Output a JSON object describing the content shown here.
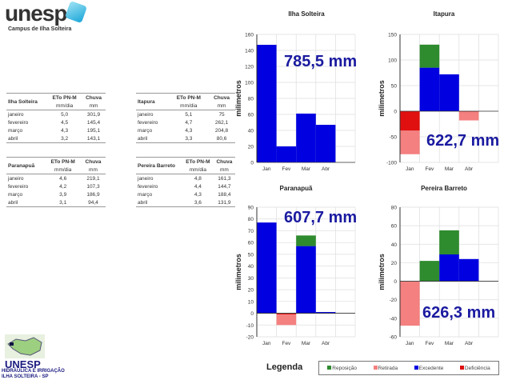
{
  "header": {
    "logo_text": "unesp",
    "campus": "Campus de Ilha Solteira"
  },
  "footer_logo": {
    "text": "UNESP",
    "subtitle": "HIDRÁULICA E IRRIGAÇÃO ILHA SOLTEIRA - SP"
  },
  "tables": [
    {
      "station": "Ilha Solteira",
      "col1": "ETo PN-M",
      "col2": "Chuva",
      "unit1": "mm/dia",
      "unit2": "mm",
      "rows": [
        {
          "month": "janeiro",
          "eto": "5,0",
          "chuva": "301,9"
        },
        {
          "month": "fevereiro",
          "eto": "4,5",
          "chuva": "145,4"
        },
        {
          "month": "março",
          "eto": "4,3",
          "chuva": "195,1"
        },
        {
          "month": "abril",
          "eto": "3,2",
          "chuva": "143,1"
        }
      ]
    },
    {
      "station": "Itapura",
      "col1": "ETo PN-M",
      "col2": "Chuva",
      "unit1": "mm/dia",
      "unit2": "mm",
      "rows": [
        {
          "month": "janeiro",
          "eto": "5,1",
          "chuva": "75"
        },
        {
          "month": "fevereiro",
          "eto": "4,7",
          "chuva": "262,1"
        },
        {
          "month": "março",
          "eto": "4,3",
          "chuva": "204,8"
        },
        {
          "month": "abril",
          "eto": "3,3",
          "chuva": "80,6"
        }
      ]
    },
    {
      "station": "Paranapuã",
      "col1": "ETo PN-M",
      "col2": "Chuva",
      "unit1": "mm/dia",
      "unit2": "mm",
      "rows": [
        {
          "month": "janeiro",
          "eto": "4,6",
          "chuva": "219,1"
        },
        {
          "month": "fevereiro",
          "eto": "4,2",
          "chuva": "107,3"
        },
        {
          "month": "março",
          "eto": "3,9",
          "chuva": "186,9"
        },
        {
          "month": "abril",
          "eto": "3,1",
          "chuva": "94,4"
        }
      ]
    },
    {
      "station": "Pereira Barreto",
      "col1": "ETo PN-M",
      "col2": "Chuva",
      "unit1": "mm/dia",
      "unit2": "mm",
      "rows": [
        {
          "month": "janeiro",
          "eto": "4,8",
          "chuva": "161,3"
        },
        {
          "month": "fevereiro",
          "eto": "4,4",
          "chuva": "144,7"
        },
        {
          "month": "março",
          "eto": "4,3",
          "chuva": "188,4"
        },
        {
          "month": "abril",
          "eto": "3,6",
          "chuva": "131,9"
        }
      ]
    }
  ],
  "legend": {
    "title": "Legenda",
    "items": [
      {
        "label": "Reposição",
        "color": "#2e8b2e"
      },
      {
        "label": "Retirada",
        "color": "#f48080"
      },
      {
        "label": "Excedente",
        "color": "#0000e0"
      },
      {
        "label": "Deficiência",
        "color": "#e01010"
      }
    ]
  },
  "chart_data": [
    {
      "type": "bar",
      "stacked": true,
      "title": "Ilha Solteira",
      "ylabel": "milimetros",
      "total": "785,5 mm",
      "categories": [
        "Jan",
        "Fev",
        "Mar",
        "Abr"
      ],
      "ylim": [
        0,
        160
      ],
      "yticks": [
        0,
        20,
        40,
        60,
        80,
        100,
        120,
        140,
        160
      ],
      "series": [
        {
          "name": "Excedente",
          "values": [
            147,
            20,
            61,
            47
          ]
        },
        {
          "name": "Reposição",
          "values": [
            0,
            0,
            0,
            0
          ]
        },
        {
          "name": "Deficiência",
          "values": [
            0,
            0,
            0,
            0
          ]
        },
        {
          "name": "Retirada",
          "values": [
            0,
            0,
            0,
            0
          ]
        }
      ]
    },
    {
      "type": "bar",
      "stacked": true,
      "title": "Itapura",
      "ylabel": "milimetros",
      "total": "622,7 mm",
      "categories": [
        "Jan",
        "Fev",
        "Mar",
        "Abr"
      ],
      "ylim": [
        -100,
        150
      ],
      "yticks": [
        -100,
        -50,
        0,
        50,
        100,
        150
      ],
      "series": [
        {
          "name": "Excedente",
          "values": [
            0,
            85,
            72,
            0
          ]
        },
        {
          "name": "Reposição",
          "values": [
            0,
            45,
            0,
            0
          ]
        },
        {
          "name": "Deficiência",
          "values": [
            -38,
            0,
            0,
            -1
          ]
        },
        {
          "name": "Retirada",
          "values": [
            -46,
            0,
            0,
            -17
          ]
        }
      ]
    },
    {
      "type": "bar",
      "stacked": true,
      "title": "Paranapuã",
      "ylabel": "milimetros",
      "total": "607,7 mm",
      "categories": [
        "Jan",
        "Fev",
        "Mar",
        "Abr"
      ],
      "ylim": [
        -20,
        90
      ],
      "yticks": [
        -20,
        -10,
        0,
        10,
        20,
        30,
        40,
        50,
        60,
        70,
        80,
        90
      ],
      "series": [
        {
          "name": "Excedente",
          "values": [
            77,
            0,
            57,
            1
          ]
        },
        {
          "name": "Reposição",
          "values": [
            0,
            0,
            9,
            0
          ]
        },
        {
          "name": "Deficiência",
          "values": [
            0,
            -1,
            0,
            0
          ]
        },
        {
          "name": "Retirada",
          "values": [
            0,
            -9,
            0,
            0
          ]
        }
      ]
    },
    {
      "type": "bar",
      "stacked": true,
      "title": "Pereira Barreto",
      "ylabel": "milimetros",
      "total": "626,3 mm",
      "categories": [
        "Jan",
        "Fev",
        "Mar",
        "Abr"
      ],
      "ylim": [
        -60,
        80
      ],
      "yticks": [
        -60,
        -40,
        -20,
        0,
        20,
        40,
        60,
        80
      ],
      "series": [
        {
          "name": "Excedente",
          "values": [
            0,
            0,
            29,
            24
          ]
        },
        {
          "name": "Reposição",
          "values": [
            0,
            22,
            26,
            0
          ]
        },
        {
          "name": "Deficiência",
          "values": [
            0,
            0,
            0,
            0
          ]
        },
        {
          "name": "Retirada",
          "values": [
            -48,
            0,
            0,
            0
          ]
        }
      ]
    }
  ]
}
